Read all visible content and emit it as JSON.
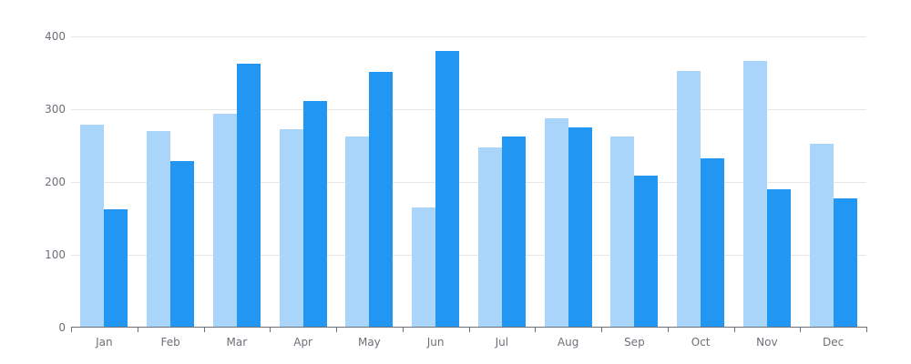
{
  "chart_data": {
    "type": "bar",
    "categories": [
      "Jan",
      "Feb",
      "Mar",
      "Apr",
      "May",
      "Jun",
      "Jul",
      "Aug",
      "Sep",
      "Oct",
      "Nov",
      "Dec"
    ],
    "series": [
      {
        "name": "light-blue-series",
        "color": "#A9D5FB",
        "values": [
          279,
          270,
          294,
          273,
          263,
          165,
          248,
          288,
          263,
          353,
          366,
          253
        ]
      },
      {
        "name": "dark-blue-series",
        "color": "#2196F3",
        "values": [
          163,
          229,
          362,
          311,
          351,
          380,
          263,
          275,
          209,
          233,
          190,
          177
        ]
      }
    ],
    "title": "",
    "xlabel": "",
    "ylabel": "",
    "ylim": [
      0,
      400
    ],
    "yticks": [
      0,
      100,
      200,
      300,
      400
    ],
    "grid": true,
    "legend_position": "none"
  },
  "style": {
    "background": "#FFFFFF",
    "axis_color": "#6E7079",
    "grid_color": "#E6E6E6",
    "label_color": "#6E7079"
  }
}
